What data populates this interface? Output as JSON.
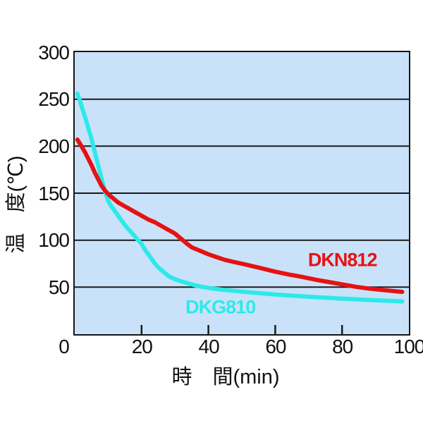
{
  "chart_data": {
    "type": "line",
    "title": "",
    "xlabel": "時　間(min)",
    "ylabel": "温　度(℃)",
    "xlim": [
      0,
      100
    ],
    "ylim": [
      0,
      300
    ],
    "xticks": [
      0,
      20,
      40,
      60,
      80,
      100
    ],
    "yticks": [
      300,
      250,
      200,
      150,
      100,
      50
    ],
    "gridlines_y": [
      250,
      200,
      150,
      100,
      50
    ],
    "grid": "horizontal-only",
    "legend_position": "inline-labels",
    "plot_background": "#c9e2fa",
    "grid_color": "#1a1a1a",
    "text_color": "#111111",
    "series": [
      {
        "name": "DKG810",
        "color": "#2de9e9",
        "label": {
          "x": 43.5,
          "y": 29
        },
        "points": [
          [
            0.8,
            256
          ],
          [
            1.5,
            249
          ],
          [
            2,
            243
          ],
          [
            3,
            232
          ],
          [
            4,
            220
          ],
          [
            5,
            208
          ],
          [
            6,
            194
          ],
          [
            7,
            180
          ],
          [
            8,
            166
          ],
          [
            9,
            152
          ],
          [
            10,
            142
          ],
          [
            11,
            136
          ],
          [
            12,
            131
          ],
          [
            13,
            126
          ],
          [
            14,
            121
          ],
          [
            15,
            116
          ],
          [
            16,
            112
          ],
          [
            17,
            108
          ],
          [
            18,
            104
          ],
          [
            19,
            100
          ],
          [
            20,
            96
          ],
          [
            21,
            90
          ],
          [
            22,
            85
          ],
          [
            23,
            80
          ],
          [
            24,
            75
          ],
          [
            25,
            71
          ],
          [
            26,
            68
          ],
          [
            27,
            65
          ],
          [
            28,
            62
          ],
          [
            29,
            60
          ],
          [
            30,
            58.5
          ],
          [
            32,
            56
          ],
          [
            34,
            54
          ],
          [
            36,
            52
          ],
          [
            38,
            50.5
          ],
          [
            40,
            49.3
          ],
          [
            42,
            48.3
          ],
          [
            45,
            47
          ],
          [
            48,
            46
          ],
          [
            50,
            45.2
          ],
          [
            53,
            44.3
          ],
          [
            56,
            43.4
          ],
          [
            60,
            42.2
          ],
          [
            64,
            41.2
          ],
          [
            68,
            40.3
          ],
          [
            72,
            39.4
          ],
          [
            76,
            38.6
          ],
          [
            80,
            37.8
          ],
          [
            84,
            37.1
          ],
          [
            88,
            36.4
          ],
          [
            92,
            35.8
          ],
          [
            95,
            35.3
          ],
          [
            98,
            34.9
          ]
        ]
      },
      {
        "name": "DKN812",
        "color": "#e61212",
        "label": {
          "x": 80,
          "y": 79
        },
        "points": [
          [
            0.8,
            207
          ],
          [
            2,
            200
          ],
          [
            3,
            194
          ],
          [
            4,
            187
          ],
          [
            5,
            180
          ],
          [
            6,
            172
          ],
          [
            7,
            165
          ],
          [
            8,
            158
          ],
          [
            9,
            153
          ],
          [
            10,
            149
          ],
          [
            11,
            146
          ],
          [
            12,
            143
          ],
          [
            13,
            140
          ],
          [
            14,
            138
          ],
          [
            15,
            136
          ],
          [
            16,
            134
          ],
          [
            17,
            132
          ],
          [
            18,
            130
          ],
          [
            19,
            128
          ],
          [
            20,
            126
          ],
          [
            22,
            122
          ],
          [
            24,
            119
          ],
          [
            26,
            115
          ],
          [
            28,
            111
          ],
          [
            30,
            107
          ],
          [
            31,
            104
          ],
          [
            32,
            101
          ],
          [
            33,
            98
          ],
          [
            34,
            95
          ],
          [
            35,
            92.5
          ],
          [
            36,
            91
          ],
          [
            38,
            88
          ],
          [
            40,
            85
          ],
          [
            42,
            82.5
          ],
          [
            45,
            79
          ],
          [
            48,
            76.5
          ],
          [
            50,
            75
          ],
          [
            53,
            72.5
          ],
          [
            56,
            70
          ],
          [
            60,
            66.5
          ],
          [
            64,
            63.5
          ],
          [
            68,
            61
          ],
          [
            72,
            58
          ],
          [
            76,
            55.5
          ],
          [
            80,
            53
          ],
          [
            84,
            50.5
          ],
          [
            88,
            48.5
          ],
          [
            92,
            47
          ],
          [
            95,
            46
          ],
          [
            98,
            45
          ]
        ]
      }
    ]
  }
}
